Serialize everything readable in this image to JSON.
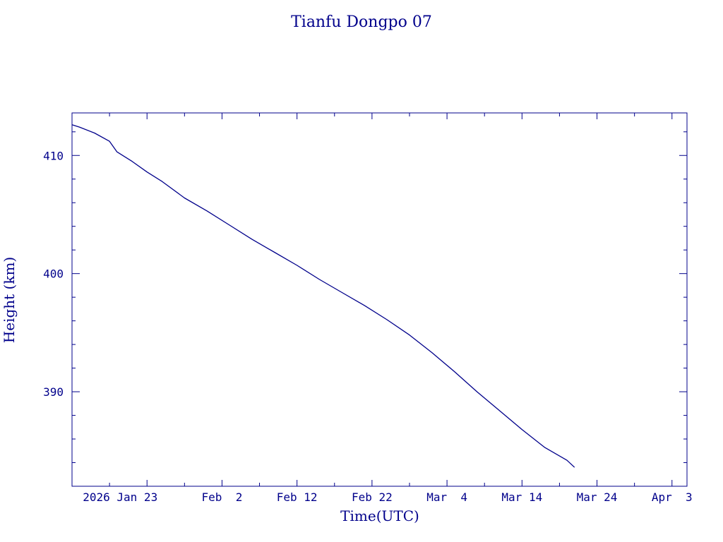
{
  "chart_data": {
    "type": "line",
    "title": "Tianfu Dongpo 07",
    "xlabel": "Time(UTC)",
    "ylabel": "Height (km)",
    "color": "#00008b",
    "xlim": [
      "2026-01-13",
      "2026-04-05"
    ],
    "ylim": [
      382,
      413.6
    ],
    "x_tick_labels": [
      "2026 Jan 23",
      "Feb  2",
      "Feb 12",
      "Feb 22",
      "Mar  4",
      "Mar 14",
      "Mar 24",
      "Apr  3"
    ],
    "x_tick_dates": [
      "2026-01-23",
      "2026-02-02",
      "2026-02-12",
      "2026-02-22",
      "2026-03-04",
      "2026-03-14",
      "2026-03-24",
      "2026-04-03"
    ],
    "y_ticks": [
      390,
      400,
      410
    ],
    "series": [
      {
        "name": "",
        "x": [
          "2026-01-13",
          "2026-01-14",
          "2026-01-16",
          "2026-01-18",
          "2026-01-19",
          "2026-01-20",
          "2026-01-21",
          "2026-01-23",
          "2026-01-25",
          "2026-01-28",
          "2026-01-31",
          "2026-02-03",
          "2026-02-06",
          "2026-02-09",
          "2026-02-12",
          "2026-02-15",
          "2026-02-18",
          "2026-02-21",
          "2026-02-24",
          "2026-02-27",
          "2026-03-02",
          "2026-03-05",
          "2026-03-08",
          "2026-03-11",
          "2026-03-14",
          "2026-03-17",
          "2026-03-20",
          "2026-03-21"
        ],
        "values": [
          412.6,
          412.4,
          411.9,
          411.2,
          410.3,
          409.9,
          409.5,
          408.6,
          407.8,
          406.4,
          405.3,
          404.1,
          402.9,
          401.8,
          400.7,
          399.5,
          398.4,
          397.3,
          396.1,
          394.8,
          393.3,
          391.7,
          390.0,
          388.4,
          386.8,
          385.3,
          384.2,
          383.6
        ]
      }
    ]
  }
}
